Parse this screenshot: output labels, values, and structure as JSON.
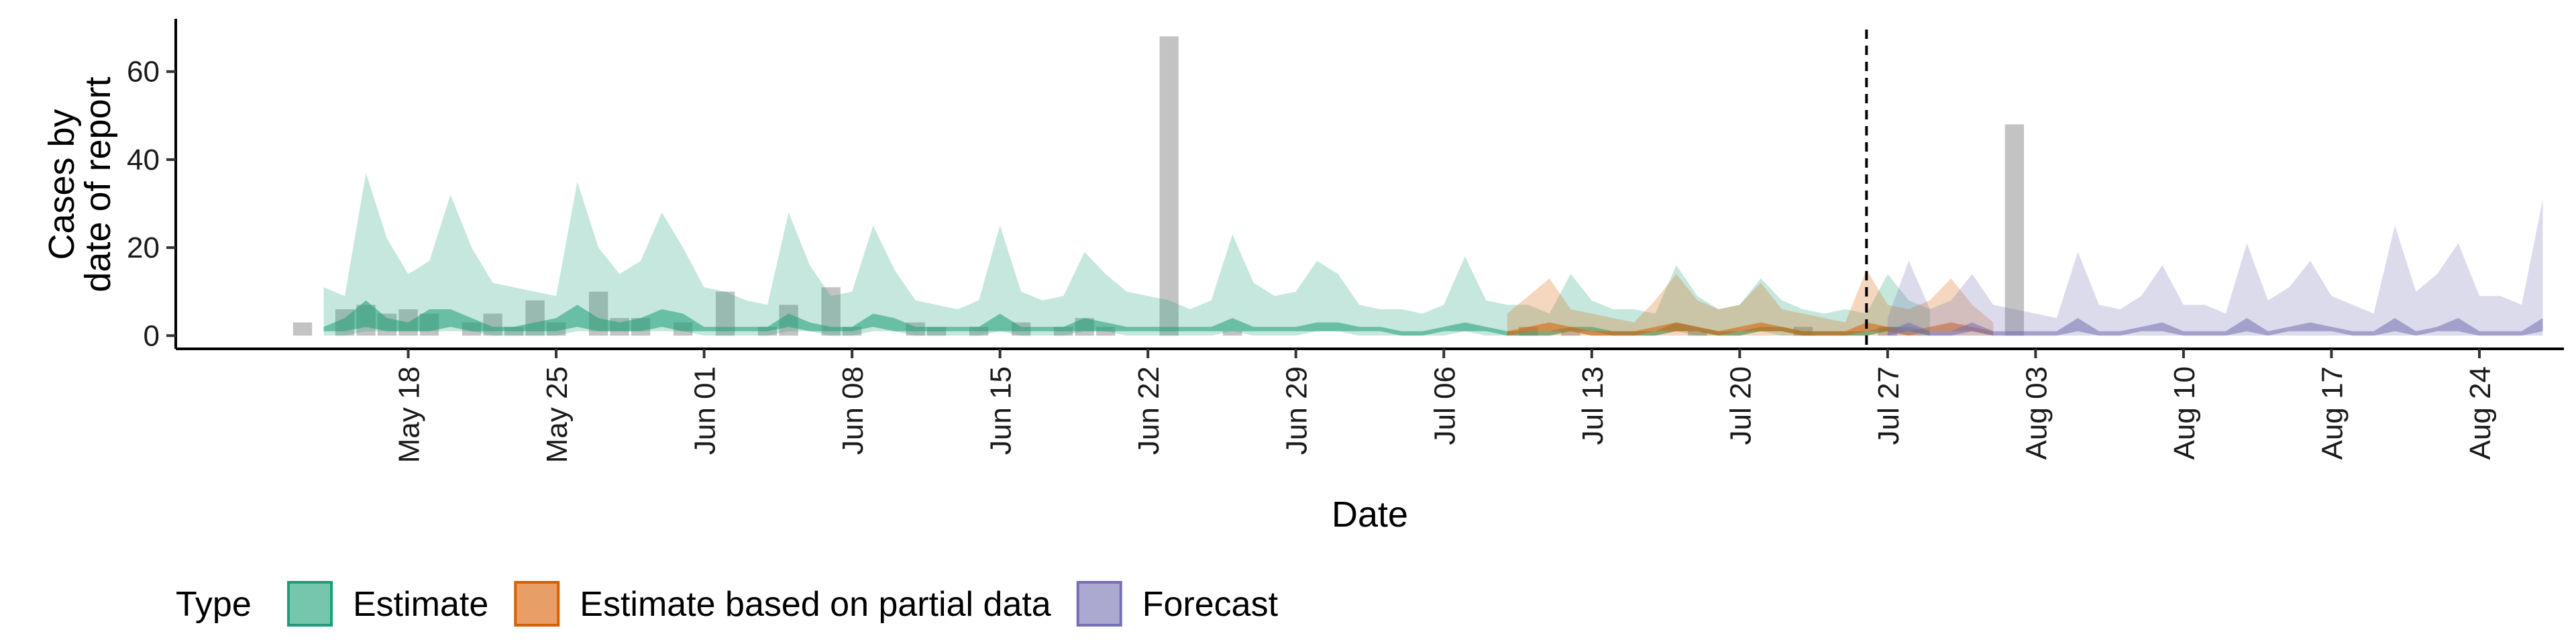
{
  "chart_data": {
    "type": "area",
    "xlabel": "Date",
    "ylabel_lines": [
      "Cases by",
      "date of report"
    ],
    "x_start": "2020-05-13",
    "x_end": "2020-08-24",
    "xlim": [
      "2020-05-07",
      "2020-08-28"
    ],
    "ylim": [
      -3,
      72
    ],
    "y_ticks": [
      0,
      20,
      40,
      60
    ],
    "forecast_start_line": "2020-07-26",
    "x_ticks": [
      {
        "date": "2020-05-18",
        "label": "May 18"
      },
      {
        "date": "2020-05-25",
        "label": "May 25"
      },
      {
        "date": "2020-06-01",
        "label": "Jun 01"
      },
      {
        "date": "2020-06-08",
        "label": "Jun 08"
      },
      {
        "date": "2020-06-15",
        "label": "Jun 15"
      },
      {
        "date": "2020-06-22",
        "label": "Jun 22"
      },
      {
        "date": "2020-06-29",
        "label": "Jun 29"
      },
      {
        "date": "2020-07-06",
        "label": "Jul 06"
      },
      {
        "date": "2020-07-13",
        "label": "Jul 13"
      },
      {
        "date": "2020-07-20",
        "label": "Jul 20"
      },
      {
        "date": "2020-07-27",
        "label": "Jul 27"
      },
      {
        "date": "2020-08-03",
        "label": "Aug 03"
      },
      {
        "date": "2020-08-10",
        "label": "Aug 10"
      },
      {
        "date": "2020-08-17",
        "label": "Aug 17"
      },
      {
        "date": "2020-08-24",
        "label": "Aug 24"
      }
    ],
    "observed_cases": [
      3,
      0,
      6,
      7,
      5,
      6,
      5,
      0,
      3,
      5,
      2,
      8,
      3,
      0,
      10,
      4,
      4,
      0,
      3,
      0,
      10,
      0,
      2,
      7,
      0,
      11,
      2,
      0,
      0,
      3,
      2,
      0,
      2,
      0,
      3,
      0,
      2,
      4,
      2,
      0,
      0,
      68,
      0,
      0,
      1,
      0,
      0,
      0,
      0,
      0,
      0,
      0,
      0,
      0,
      0,
      0,
      0,
      0,
      2,
      0,
      1,
      0,
      0,
      0,
      0,
      0,
      1,
      0,
      0,
      0,
      0,
      2,
      0,
      0,
      0,
      2,
      0,
      0,
      0,
      0,
      0,
      48,
      0
    ],
    "series": [
      {
        "name": "Estimate",
        "color": "#1b9e77",
        "start": "2020-05-14",
        "outer_upper": [
          11,
          9,
          37,
          22,
          14,
          17,
          32,
          20,
          12,
          11,
          10,
          9,
          35,
          20,
          14,
          17,
          28,
          20,
          11,
          10,
          8,
          7,
          28,
          16,
          9,
          10,
          25,
          15,
          8,
          7,
          6,
          8,
          25,
          10,
          8,
          9,
          19,
          14,
          10,
          9,
          8,
          6,
          8,
          23,
          12,
          9,
          10,
          17,
          14,
          7,
          6,
          6,
          5,
          7,
          18,
          8,
          7,
          7,
          5,
          14,
          8,
          6,
          6,
          5,
          16,
          9,
          6,
          7,
          13,
          8,
          6,
          5,
          6,
          5,
          14,
          8,
          6
        ],
        "outer_lower": [
          0,
          0,
          1,
          1,
          1,
          1,
          1,
          1,
          0,
          0,
          0,
          0,
          1,
          1,
          1,
          1,
          1,
          1,
          0,
          0,
          0,
          0,
          1,
          1,
          0,
          0,
          1,
          1,
          0,
          0,
          0,
          0,
          1,
          0,
          0,
          0,
          1,
          1,
          0,
          0,
          0,
          0,
          0,
          1,
          0,
          0,
          0,
          1,
          1,
          0,
          0,
          0,
          0,
          0,
          1,
          0,
          0,
          0,
          0,
          1,
          0,
          0,
          0,
          0,
          1,
          0,
          0,
          0,
          1,
          0,
          0,
          0,
          0,
          0,
          1,
          0,
          0
        ],
        "inner_upper": [
          2,
          4,
          8,
          4,
          3,
          6,
          6,
          4,
          2,
          2,
          3,
          4,
          7,
          4,
          3,
          4,
          6,
          5,
          2,
          2,
          2,
          2,
          5,
          3,
          2,
          2,
          5,
          4,
          2,
          2,
          2,
          2,
          5,
          2,
          2,
          2,
          4,
          3,
          2,
          2,
          2,
          2,
          2,
          4,
          2,
          2,
          2,
          3,
          3,
          2,
          2,
          1,
          1,
          2,
          3,
          2,
          1,
          1,
          1,
          2,
          2,
          1,
          1,
          1,
          3,
          2,
          1,
          1,
          2,
          2,
          1,
          1,
          1,
          1,
          2,
          2,
          1
        ],
        "inner_lower": [
          1,
          1,
          2,
          1,
          1,
          1,
          2,
          1,
          1,
          1,
          1,
          1,
          2,
          1,
          1,
          1,
          2,
          1,
          1,
          1,
          1,
          1,
          2,
          1,
          1,
          1,
          2,
          1,
          1,
          1,
          1,
          1,
          1,
          1,
          1,
          1,
          1,
          1,
          1,
          1,
          1,
          1,
          1,
          1,
          1,
          1,
          1,
          1,
          1,
          1,
          1,
          0,
          0,
          1,
          1,
          1,
          0,
          0,
          0,
          1,
          1,
          0,
          0,
          0,
          1,
          1,
          0,
          0,
          1,
          1,
          0,
          0,
          0,
          0,
          1,
          1,
          0
        ]
      },
      {
        "name": "Estimate based on partial data",
        "color": "#d95f02",
        "start": "2020-07-09",
        "outer_upper": [
          5,
          9,
          13,
          6,
          5,
          4,
          3,
          8,
          14,
          8,
          6,
          7,
          12,
          6,
          5,
          4,
          3,
          15,
          7,
          6,
          8,
          13,
          7,
          3
        ],
        "outer_lower": [
          0,
          0,
          0,
          0,
          0,
          0,
          0,
          0,
          0,
          0,
          0,
          0,
          0,
          0,
          0,
          0,
          0,
          0,
          0,
          0,
          0,
          0,
          0,
          0
        ],
        "inner_upper": [
          1,
          2,
          3,
          2,
          1,
          1,
          1,
          2,
          3,
          2,
          1,
          2,
          3,
          2,
          1,
          1,
          1,
          3,
          2,
          1,
          2,
          3,
          2,
          1
        ],
        "inner_lower": [
          0,
          1,
          1,
          1,
          0,
          0,
          0,
          1,
          1,
          1,
          0,
          1,
          1,
          1,
          0,
          0,
          0,
          1,
          1,
          0,
          1,
          1,
          1,
          0
        ]
      },
      {
        "name": "Forecast",
        "color": "#7570b3",
        "start": "2020-07-27",
        "outer_upper": [
          4,
          17,
          6,
          8,
          14,
          7,
          6,
          5,
          4,
          19,
          7,
          6,
          9,
          16,
          7,
          7,
          5,
          21,
          8,
          11,
          17,
          9,
          7,
          5,
          25,
          10,
          14,
          21,
          9,
          9,
          7,
          31
        ],
        "outer_lower": [
          0,
          0,
          0,
          0,
          0,
          0,
          0,
          0,
          0,
          0,
          0,
          0,
          0,
          0,
          0,
          0,
          0,
          0,
          0,
          0,
          0,
          0,
          0,
          0,
          0,
          0,
          0,
          0,
          0,
          0,
          0,
          0
        ],
        "inner_upper": [
          1,
          3,
          1,
          1,
          3,
          1,
          1,
          1,
          1,
          4,
          1,
          1,
          2,
          3,
          1,
          1,
          1,
          4,
          1,
          2,
          3,
          2,
          1,
          1,
          4,
          1,
          2,
          4,
          1,
          1,
          1,
          4
        ],
        "inner_lower": [
          0,
          1,
          0,
          0,
          1,
          0,
          0,
          0,
          0,
          1,
          0,
          0,
          1,
          1,
          0,
          0,
          0,
          1,
          0,
          1,
          1,
          1,
          0,
          0,
          1,
          0,
          1,
          1,
          0,
          0,
          0,
          1
        ]
      }
    ],
    "legend": {
      "title": "Type",
      "position": "bottom",
      "items": [
        "Estimate",
        "Estimate based on partial data",
        "Forecast"
      ]
    }
  }
}
